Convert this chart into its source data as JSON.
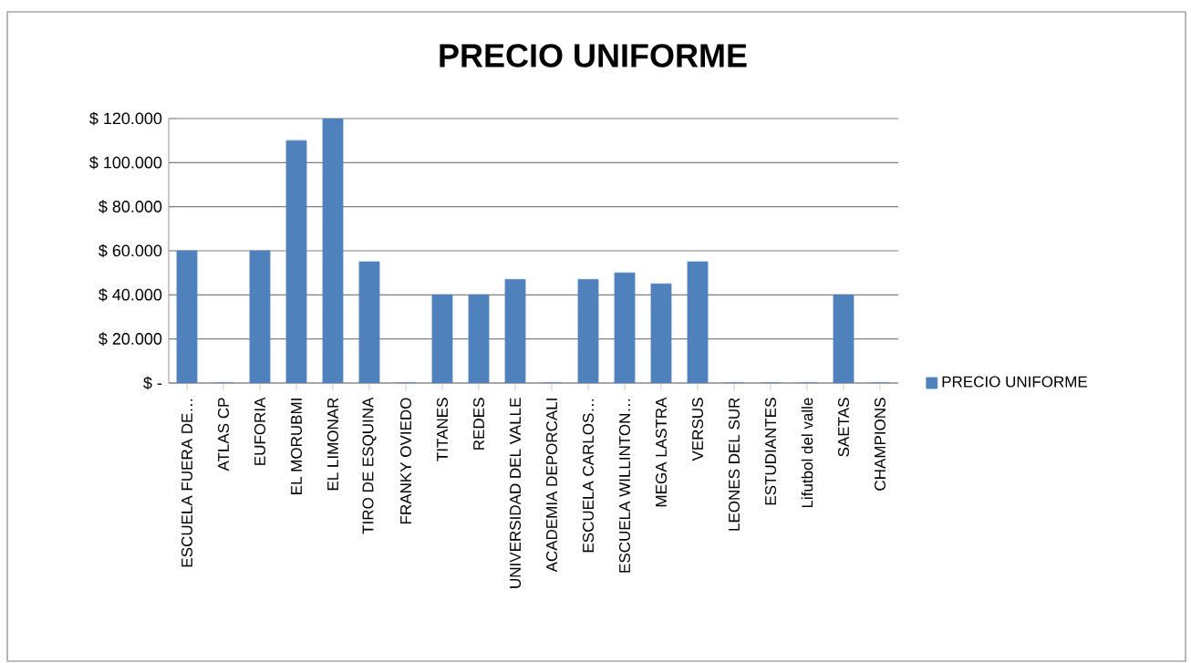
{
  "chart_data": {
    "type": "bar",
    "title": "PRECIO UNIFORME",
    "categories": [
      "ESCUELA FUERA DE…",
      "ATLAS CP",
      "EUFORIA",
      "EL MORUBMI",
      "EL LIMONAR",
      "TIRO DE ESQUINA",
      "FRANKY OVIEDO",
      "TITANES",
      "REDES",
      "UNIVERSIDAD DEL VALLE",
      "ACADEMIA DEPORCALI",
      "ESCUELA CARLOS…",
      "ESCUELA WILLINTON…",
      "MEGA LASTRA",
      "VERSUS",
      "LEONES DEL SUR",
      "ESTUDIANTES",
      "Lifutbol del valle",
      "SAETAS",
      "CHAMPIONS"
    ],
    "series": [
      {
        "name": "PRECIO UNIFORME",
        "color": "#4f81bd",
        "values": [
          60000,
          0,
          60000,
          110000,
          120000,
          55000,
          0,
          40000,
          40000,
          47000,
          0,
          47000,
          50000,
          45000,
          55000,
          0,
          0,
          0,
          40000,
          0
        ]
      }
    ],
    "ylim": [
      0,
      120000
    ],
    "yticks": [
      {
        "value": 0,
        "label": "$ -"
      },
      {
        "value": 20000,
        "label": "$ 20.000"
      },
      {
        "value": 40000,
        "label": "$ 40.000"
      },
      {
        "value": 60000,
        "label": "$ 60.000"
      },
      {
        "value": 80000,
        "label": "$ 80.000"
      },
      {
        "value": 100000,
        "label": "$ 100.000"
      },
      {
        "value": 120000,
        "label": "$ 120.000"
      }
    ],
    "grid": "y",
    "legend": "right"
  }
}
